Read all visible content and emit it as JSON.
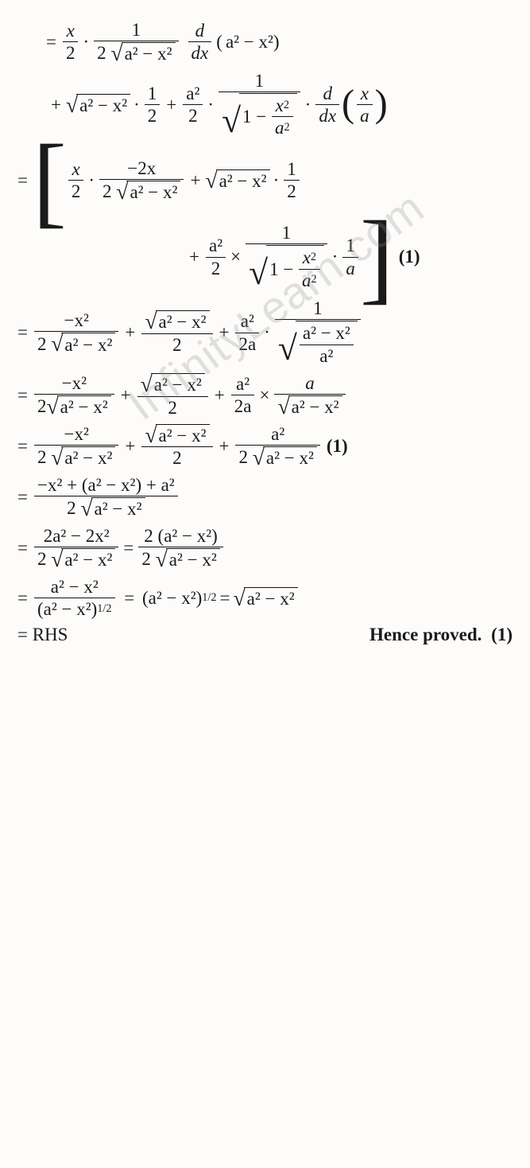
{
  "watermark": "InfinityLearn.com",
  "vars": {
    "x": "x",
    "a": "a",
    "one": "1",
    "two": "2",
    "minus": "−",
    "neg2x": "−2x",
    "ddx_d": "d",
    "ddx_dx": "dx",
    "half": "½"
  },
  "expr": {
    "a2": "a",
    "a2sup": "2",
    "x2": "x",
    "x2sup": "2",
    "a2_minus_x2": "a² − x²",
    "one_over_a": "a",
    "line_ddx_arg_ax": "a² − x²",
    "two_root": "2",
    "two_a": "2a",
    "root_a2x2": "a² − x²",
    "neg_x2": "−x²",
    "over_a2": "a²",
    "x_over_a_num": "x",
    "x_over_a_den": "a",
    "one_minus_x2_over_a2_1": "1 −",
    "half_exp": "1/2",
    "a2_over_2_num": "a²",
    "a2_over_2_den": "2",
    "combined_num": "−x² + (a² − x²) + a²",
    "combined_den_2root": "2",
    "simplify1_num": "2a² − 2x²",
    "simplify1_rhs_num": "2 (a² − x²)",
    "penult_num": "a² − x²",
    "penult_den_base": "(a² − x²)",
    "penult_result": "(a² − x²)",
    "final_sqrt": "a² − x²",
    "rhs": "= RHS",
    "proved": "Hence proved.",
    "mark1": "(1)"
  }
}
